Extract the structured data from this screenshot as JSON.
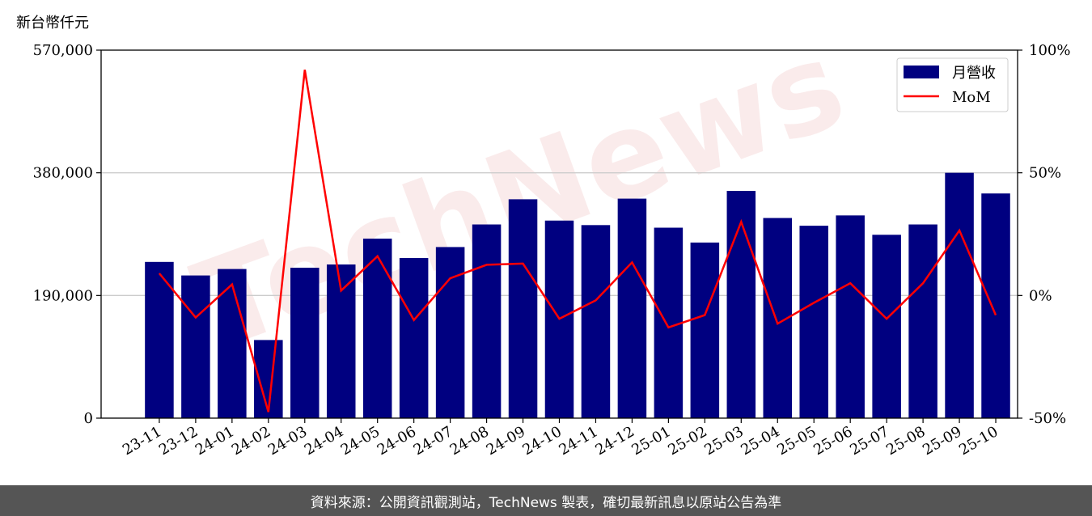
{
  "chart_data": {
    "type": "bar",
    "unit_label": "新台幣仟元",
    "categories": [
      "23-11",
      "23-12",
      "24-01",
      "24-02",
      "24-03",
      "24-04",
      "24-05",
      "24-06",
      "24-07",
      "24-08",
      "24-09",
      "24-10",
      "24-11",
      "24-12",
      "25-01",
      "25-02",
      "25-03",
      "25-04",
      "25-05",
      "25-06",
      "25-07",
      "25-08",
      "25-09",
      "25-10"
    ],
    "series": [
      {
        "name": "月營收",
        "type": "bar",
        "axis": "left",
        "color": "#000080",
        "values": [
          242000,
          221000,
          231000,
          121000,
          233000,
          238000,
          278000,
          248000,
          265000,
          300000,
          339000,
          306000,
          299000,
          340000,
          295000,
          272000,
          352000,
          310000,
          298000,
          314000,
          284000,
          300000,
          380000,
          348000
        ]
      },
      {
        "name": "MoM",
        "type": "line",
        "axis": "right",
        "color": "#ff0000",
        "values": [
          9,
          -9,
          4.5,
          -47.5,
          92,
          2,
          16,
          -10,
          7,
          12.5,
          13,
          -9.5,
          -2,
          13.5,
          -13,
          -8,
          30,
          -11.5,
          -3,
          5,
          -9.5,
          5,
          26.5,
          -8
        ]
      }
    ],
    "left_axis": {
      "ylim": [
        0,
        570000
      ],
      "ticks": [
        0,
        190000,
        380000,
        570000
      ],
      "tick_labels": [
        "0",
        "190,000",
        "380,000",
        "570,000"
      ]
    },
    "right_axis": {
      "ylim": [
        -50,
        100
      ],
      "ticks": [
        -50,
        0,
        50,
        100
      ],
      "tick_labels": [
        "-50%",
        "0%",
        "50%",
        "100%"
      ]
    },
    "grid": "horizontal",
    "legend_position": "top-right",
    "xlabel": "",
    "ylabel": "新台幣仟元"
  },
  "watermark": "TechNews",
  "footer": "資料來源：公開資訊觀測站，TechNews 製表，確切最新訊息以原站公告為準"
}
